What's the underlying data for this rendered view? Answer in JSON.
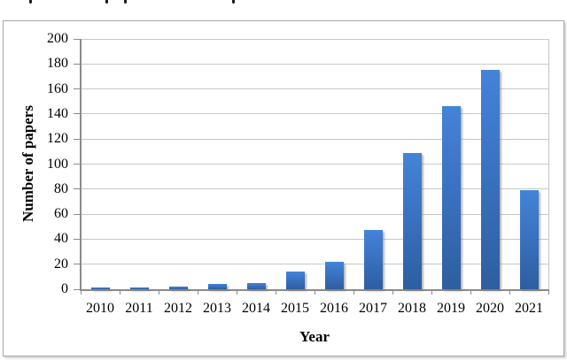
{
  "page": {
    "background": "#ffffff",
    "top_clipped_text": {
      "glyph": "p",
      "x_positions": [
        33,
        119,
        140,
        262
      ]
    }
  },
  "chart": {
    "frame_border_color": "#a8a8a8",
    "colors": {
      "bar_top": "#4483d8",
      "bar_bottom": "#2d5e9e",
      "gridline": "#c8c8c8",
      "axis": "#8a8a8a",
      "text": "#000000"
    }
  },
  "chart_data": {
    "type": "bar",
    "title": "",
    "xlabel": "Year",
    "ylabel": "Number of papers",
    "categories": [
      "2010",
      "2011",
      "2012",
      "2013",
      "2014",
      "2015",
      "2016",
      "2017",
      "2018",
      "2019",
      "2020",
      "2021"
    ],
    "values": [
      1,
      1,
      2,
      4,
      5,
      14,
      22,
      47,
      109,
      146,
      175,
      79
    ],
    "ylim": [
      0,
      200
    ],
    "yticks": [
      0,
      20,
      40,
      60,
      80,
      100,
      120,
      140,
      160,
      180,
      200
    ],
    "grid": true,
    "legend": false
  }
}
